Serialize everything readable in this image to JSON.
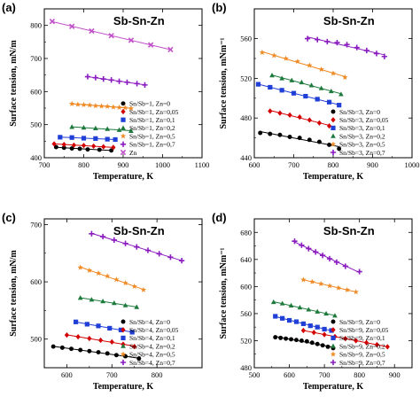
{
  "chart_data": [
    {
      "type": "scatter",
      "panel_label": "(a)",
      "title": "Sb-Sn-Zn",
      "xlabel": "Temperature, K",
      "ylabel": "Surface tension, mN/m",
      "xlim": [
        700,
        1100
      ],
      "ylim": [
        400,
        850
      ],
      "xticks": [
        700,
        800,
        900,
        1000,
        1100
      ],
      "yticks": [
        400,
        500,
        600,
        700,
        800
      ],
      "xtick_labels": [
        "700",
        "800",
        "900",
        "1000",
        "1100"
      ],
      "ytick_labels": [
        "400",
        "500",
        "600",
        "700",
        "800"
      ],
      "legend_position": "bottom-right",
      "series": [
        {
          "name": "Sn/Sb=1, Zn=0",
          "marker": "circle",
          "color": "#000000",
          "x": [
            730,
            750,
            770,
            790,
            810,
            840,
            870
          ],
          "y": [
            432,
            430,
            428,
            427,
            425,
            424,
            422
          ]
        },
        {
          "name": "Sn/Sb=1, Zn=0,05",
          "marker": "diamond",
          "color": "#d40000",
          "x": [
            725,
            750,
            775,
            800,
            825,
            850,
            875
          ],
          "y": [
            442,
            440,
            438,
            437,
            435,
            433,
            431
          ]
        },
        {
          "name": "Sn/Sb=1, Zn=0,1",
          "marker": "square",
          "color": "#1f3fd6",
          "x": [
            740,
            770,
            800,
            830,
            860,
            880
          ],
          "y": [
            462,
            461,
            459,
            458,
            456,
            455
          ]
        },
        {
          "name": "Sn/Sb=1, Zn=0,2",
          "marker": "triangle",
          "color": "#1e7a3c",
          "x": [
            770,
            800,
            830,
            860,
            890,
            920
          ],
          "y": [
            493,
            491,
            489,
            487,
            484,
            481
          ]
        },
        {
          "name": "Sn/Sb=1, Zn=0,5",
          "marker": "star",
          "color": "#f08a24",
          "x": [
            770,
            785,
            800,
            815,
            830,
            845,
            860,
            875,
            890,
            905,
            920
          ],
          "y": [
            563,
            561,
            560,
            559,
            557,
            556,
            555,
            553,
            552,
            551,
            549
          ]
        },
        {
          "name": "Sn/Sb=1, Zn=0,7",
          "marker": "plus",
          "color": "#8a1bbf",
          "x": [
            810,
            830,
            850,
            870,
            890,
            910,
            935,
            955
          ],
          "y": [
            645,
            642,
            638,
            635,
            631,
            628,
            624,
            620
          ]
        },
        {
          "name": "Zn",
          "marker": "cross",
          "color": "#c050c8",
          "x": [
            720,
            770,
            820,
            870,
            920,
            970,
            1020
          ],
          "y": [
            812,
            797,
            783,
            769,
            755,
            741,
            727
          ]
        }
      ]
    },
    {
      "type": "scatter",
      "panel_label": "(b)",
      "title": "Sb-Sn-Zn",
      "xlabel": "Temperature, K",
      "ylabel": "Surface tension, mNm⁻¹",
      "xlim": [
        600,
        1000
      ],
      "ylim": [
        440,
        590
      ],
      "xticks": [
        600,
        700,
        800,
        900,
        1000
      ],
      "yticks": [
        440,
        480,
        520,
        560
      ],
      "xtick_labels": [
        "600",
        "700",
        "800",
        "900",
        "1000"
      ],
      "ytick_labels": [
        "440",
        "480",
        "520",
        "560"
      ],
      "legend_position": "bottom-right",
      "series": [
        {
          "name": "Sn/Sb=3, Zn=0",
          "marker": "circle",
          "color": "#000000",
          "x": [
            615,
            640,
            665,
            690,
            715,
            740,
            765,
            790,
            815
          ],
          "y": [
            465,
            464,
            463,
            461,
            460,
            458,
            456,
            453,
            449
          ]
        },
        {
          "name": "Sn/Sb=3, Zn=0,05",
          "marker": "diamond",
          "color": "#d40000",
          "x": [
            640,
            665,
            690,
            715,
            740,
            765,
            790
          ],
          "y": [
            487,
            485,
            483,
            481,
            478,
            475,
            472
          ]
        },
        {
          "name": "Sn/Sb=3, Zn=0,1",
          "marker": "square",
          "color": "#1f3fd6",
          "x": [
            610,
            640,
            670,
            700,
            730,
            760,
            790,
            815
          ],
          "y": [
            514,
            511,
            508,
            505,
            502,
            499,
            496,
            493
          ]
        },
        {
          "name": "Sn/Sb=3, Zn=0,2",
          "marker": "triangle",
          "color": "#1e7a3c",
          "x": [
            645,
            670,
            695,
            720,
            745,
            770,
            795,
            820
          ],
          "y": [
            523,
            520,
            518,
            516,
            513,
            510,
            507,
            504
          ]
        },
        {
          "name": "Sn/Sb=3, Zn=0,5",
          "marker": "star",
          "color": "#f08a24",
          "x": [
            620,
            650,
            680,
            710,
            740,
            770,
            800,
            830
          ],
          "y": [
            546,
            543,
            540,
            537,
            533,
            529,
            525,
            521
          ]
        },
        {
          "name": "Sn/Sb=3, Zn=0,7",
          "marker": "plus",
          "color": "#8a1bbf",
          "x": [
            735,
            760,
            785,
            810,
            835,
            860,
            885,
            910,
            930
          ],
          "y": [
            560,
            559,
            557,
            556,
            554,
            551,
            548,
            545,
            542
          ]
        }
      ]
    },
    {
      "type": "scatter",
      "panel_label": "(c)",
      "title": "Sb-Sn-Zn",
      "xlabel": "Temperature, K",
      "ylabel": "Surface tension, mN/m",
      "xlim": [
        550,
        900
      ],
      "ylim": [
        450,
        710
      ],
      "xticks": [
        600,
        700,
        800
      ],
      "yticks": [
        500,
        600,
        700
      ],
      "xtick_labels": [
        "600",
        "700",
        "800"
      ],
      "ytick_labels": [
        "500",
        "600",
        "700"
      ],
      "legend_position": "bottom-right",
      "series": [
        {
          "name": "Sn/Sb=4, Zn=0",
          "marker": "circle",
          "color": "#000000",
          "x": [
            570,
            590,
            610,
            630,
            650,
            670,
            690,
            710,
            730,
            760
          ],
          "y": [
            487,
            485,
            483,
            481,
            479,
            477,
            475,
            472,
            470,
            466
          ]
        },
        {
          "name": "Sn/Sb=4, Zn=0,05",
          "marker": "diamond",
          "color": "#d40000",
          "x": [
            600,
            625,
            650,
            675,
            700,
            725,
            750
          ],
          "y": [
            507,
            504,
            501,
            498,
            495,
            491,
            487
          ]
        },
        {
          "name": "Sn/Sb=4, Zn=0,1",
          "marker": "square",
          "color": "#1f3fd6",
          "x": [
            620,
            645,
            670,
            695,
            720,
            745
          ],
          "y": [
            530,
            526,
            523,
            519,
            516,
            512
          ]
        },
        {
          "name": "Sn/Sb=4, Zn=0,2",
          "marker": "triangle",
          "color": "#1e7a3c",
          "x": [
            630,
            655,
            680,
            705,
            730,
            755
          ],
          "y": [
            572,
            569,
            566,
            563,
            559,
            556
          ]
        },
        {
          "name": "Sn/Sb=4, Zn=0,5",
          "marker": "star",
          "color": "#f08a24",
          "x": [
            630,
            650,
            670,
            690,
            710,
            730,
            750,
            770
          ],
          "y": [
            625,
            620,
            615,
            610,
            604,
            598,
            592,
            586
          ]
        },
        {
          "name": "Sn/Sb=4, Zn=0,7",
          "marker": "plus",
          "color": "#8a1bbf",
          "x": [
            655,
            680,
            705,
            730,
            755,
            780,
            805,
            830,
            855
          ],
          "y": [
            684,
            679,
            673,
            667,
            661,
            655,
            649,
            643,
            637
          ]
        }
      ]
    },
    {
      "type": "scatter",
      "panel_label": "(d)",
      "title": "Sb-Sn-Zn",
      "xlabel": "Temperature, K",
      "ylabel": "Surface tension, mNm⁻¹",
      "xlim": [
        500,
        950
      ],
      "ylim": [
        480,
        700
      ],
      "xticks": [
        500,
        600,
        700,
        800,
        900
      ],
      "yticks": [
        480,
        520,
        560,
        600,
        640,
        680
      ],
      "xtick_labels": [
        "500",
        "600",
        "700",
        "800",
        "900"
      ],
      "ytick_labels": [
        "480",
        "520",
        "560",
        "600",
        "640",
        "680"
      ],
      "legend_position": "bottom-right",
      "series": [
        {
          "name": "Sn/Sb=9, Zn=0",
          "marker": "circle",
          "color": "#000000",
          "x": [
            560,
            575,
            590,
            605,
            620,
            635,
            650,
            665,
            680,
            695,
            710,
            725
          ],
          "y": [
            525,
            524,
            523,
            522,
            521,
            520,
            519,
            517,
            515,
            513,
            511,
            509
          ]
        },
        {
          "name": "Sn/Sb=9, Zn=0,05",
          "marker": "diamond",
          "color": "#d40000",
          "x": [
            640,
            670,
            700,
            730,
            760,
            790,
            820,
            850,
            880
          ],
          "y": [
            535,
            532,
            529,
            526,
            523,
            520,
            517,
            514,
            511
          ]
        },
        {
          "name": "Sn/Sb=9, Zn=0,1",
          "marker": "square",
          "color": "#1f3fd6",
          "x": [
            560,
            580,
            600,
            620,
            640,
            660,
            680,
            700,
            720
          ],
          "y": [
            556,
            553,
            550,
            548,
            545,
            542,
            540,
            537,
            535
          ]
        },
        {
          "name": "Sn/Sb=9, Zn=0,2",
          "marker": "triangle",
          "color": "#1e7a3c",
          "x": [
            555,
            580,
            605,
            630,
            655,
            680,
            705,
            730
          ],
          "y": [
            577,
            575,
            572,
            569,
            566,
            563,
            560,
            557
          ]
        },
        {
          "name": "Sn/Sb=9, Zn=0,5",
          "marker": "star",
          "color": "#f08a24",
          "x": [
            640,
            665,
            690,
            715,
            740,
            765,
            790
          ],
          "y": [
            610,
            607,
            604,
            601,
            598,
            595,
            592
          ]
        },
        {
          "name": "Sn/Sb=9, Zn=0,7",
          "marker": "plus",
          "color": "#8a1bbf",
          "x": [
            615,
            635,
            655,
            675,
            695,
            715,
            735,
            760,
            800
          ],
          "y": [
            667,
            661,
            656,
            651,
            646,
            641,
            636,
            630,
            622
          ]
        }
      ]
    }
  ]
}
